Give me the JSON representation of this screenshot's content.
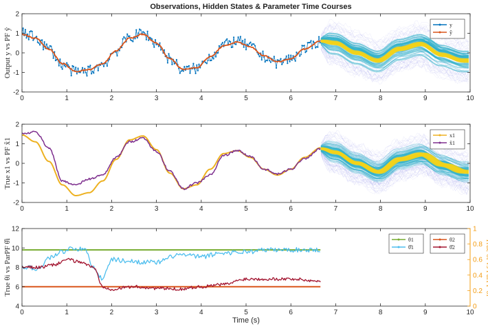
{
  "figure_title": "Observations, Hidden States & Parameter Time Courses",
  "xlabel": "Time (s)",
  "colors": {
    "blue": "#0072bd",
    "orange": "#d95319",
    "gold": "#edb120",
    "purple": "#7e2f8e",
    "green": "#77ac30",
    "cyan": "#4dbeee",
    "darkred": "#a2142f",
    "right_axis": "#f39c12",
    "band_outer": "#3a3ad8",
    "band_mid": "#2fb0c8",
    "band_inner": "#f2d21a"
  },
  "chart_data": [
    {
      "type": "line",
      "ylabel": "Output y vs PF ŷ",
      "xlim": [
        0,
        10
      ],
      "ylim": [
        -2,
        2
      ],
      "xticks": [
        0,
        1,
        2,
        3,
        4,
        5,
        6,
        7,
        8,
        9,
        10
      ],
      "yticks": [
        -2,
        -1,
        0,
        1,
        2
      ],
      "legend": [
        "y",
        "ŷ"
      ],
      "legend_position": "top-right",
      "observed_until": 6.67,
      "series": [
        {
          "name": "y",
          "x": [
            0,
            0.3,
            0.6,
            0.9,
            1.2,
            1.5,
            1.8,
            2.1,
            2.4,
            2.7,
            3.0,
            3.3,
            3.6,
            3.9,
            4.2,
            4.5,
            4.8,
            5.1,
            5.4,
            5.7,
            6.0,
            6.3,
            6.67
          ],
          "y": [
            1.0,
            0.8,
            0.2,
            -0.6,
            -1.0,
            -0.9,
            -0.6,
            0.1,
            0.8,
            1.0,
            0.5,
            -0.3,
            -0.9,
            -0.8,
            -0.2,
            0.4,
            0.6,
            0.3,
            -0.2,
            -0.5,
            -0.3,
            0.2,
            0.6
          ]
        },
        {
          "name": "ŷ",
          "x": [
            0,
            0.3,
            0.6,
            0.9,
            1.2,
            1.5,
            1.8,
            2.1,
            2.4,
            2.7,
            3.0,
            3.3,
            3.6,
            3.9,
            4.2,
            4.5,
            4.8,
            5.1,
            5.4,
            5.7,
            6.0,
            6.3,
            6.67
          ],
          "y": [
            0.95,
            0.75,
            0.2,
            -0.55,
            -0.95,
            -0.85,
            -0.55,
            0.1,
            0.75,
            0.95,
            0.5,
            -0.3,
            -0.85,
            -0.75,
            -0.2,
            0.35,
            0.55,
            0.3,
            -0.15,
            -0.45,
            -0.3,
            0.2,
            0.6
          ]
        }
      ],
      "forecast": {
        "x": [
          6.67,
          7.0,
          7.5,
          8.0,
          8.5,
          9.0,
          9.5,
          10.0
        ],
        "mean": [
          0.6,
          0.5,
          0.0,
          -0.4,
          0.2,
          0.45,
          -0.1,
          -0.4
        ],
        "spread": 1.1
      }
    },
    {
      "type": "line",
      "ylabel": "True x1 vs PF x̂1",
      "xlim": [
        0,
        10
      ],
      "ylim": [
        -2,
        2
      ],
      "xticks": [
        0,
        1,
        2,
        3,
        4,
        5,
        6,
        7,
        8,
        9,
        10
      ],
      "yticks": [
        -2,
        -1,
        0,
        1,
        2
      ],
      "legend": [
        "x1",
        "x̂1"
      ],
      "legend_position": "top-right",
      "observed_until": 6.67,
      "series": [
        {
          "name": "x1",
          "x": [
            0,
            0.3,
            0.6,
            0.9,
            1.2,
            1.5,
            1.8,
            2.1,
            2.4,
            2.7,
            3.0,
            3.3,
            3.6,
            3.9,
            4.2,
            4.5,
            4.8,
            5.1,
            5.4,
            5.7,
            6.0,
            6.3,
            6.67
          ],
          "y": [
            1.45,
            1.1,
            0.1,
            -1.1,
            -1.65,
            -1.5,
            -0.9,
            0.2,
            1.2,
            1.4,
            0.7,
            -0.5,
            -1.3,
            -1.1,
            -0.3,
            0.5,
            0.65,
            0.3,
            -0.3,
            -0.6,
            -0.3,
            0.3,
            0.8
          ]
        },
        {
          "name": "x̂1",
          "x": [
            0,
            0.3,
            0.6,
            0.9,
            1.2,
            1.5,
            1.8,
            2.1,
            2.4,
            2.7,
            3.0,
            3.3,
            3.6,
            3.9,
            4.2,
            4.5,
            4.8,
            5.1,
            5.4,
            5.7,
            6.0,
            6.3,
            6.67
          ],
          "y": [
            1.5,
            1.6,
            0.8,
            -0.9,
            -1.1,
            -0.8,
            -0.6,
            0.3,
            1.1,
            1.3,
            0.6,
            -0.4,
            -1.3,
            -1.0,
            -0.6,
            0.4,
            0.65,
            0.35,
            -0.3,
            -0.55,
            -0.3,
            0.25,
            0.75
          ]
        }
      ],
      "forecast": {
        "x": [
          6.67,
          7.0,
          7.5,
          8.0,
          8.5,
          9.0,
          9.5,
          10.0
        ],
        "mean": [
          0.75,
          0.55,
          0.0,
          -0.45,
          0.2,
          0.45,
          -0.1,
          -0.45
        ],
        "spread": 1.0
      }
    },
    {
      "type": "line",
      "ylabel": "True θi vs ParPF θ̂i",
      "ylabel_right": "True θi vs ParPF θ̂i",
      "xlim": [
        0,
        10
      ],
      "ylim": [
        4,
        12
      ],
      "ylim_right": [
        0,
        1
      ],
      "xticks": [
        0,
        1,
        2,
        3,
        4,
        5,
        6,
        7,
        8,
        9,
        10
      ],
      "yticks": [
        4,
        6,
        8,
        10,
        12
      ],
      "yticks_right": [
        0,
        0.2,
        0.4,
        0.6,
        0.8,
        1
      ],
      "legend": [
        "θ1",
        "θ̂1",
        "θ2",
        "θ̂2"
      ],
      "legend_position": "top-right",
      "series": [
        {
          "name": "θ1",
          "axis": "left",
          "x": [
            0,
            6.67
          ],
          "y": [
            9.8,
            9.8
          ]
        },
        {
          "name": "θ̂1",
          "axis": "left",
          "x": [
            0,
            0.4,
            0.6,
            0.9,
            1.1,
            1.4,
            1.6,
            1.8,
            2.0,
            2.5,
            3.0,
            3.5,
            4.0,
            4.5,
            5.0,
            5.5,
            6.0,
            6.67
          ],
          "y": [
            8.0,
            7.9,
            9.0,
            9.6,
            10.0,
            9.8,
            8.0,
            6.8,
            8.8,
            8.6,
            8.5,
            9.3,
            9.1,
            9.5,
            9.6,
            9.8,
            9.8,
            9.8
          ]
        },
        {
          "name": "θ2",
          "axis": "right",
          "x": [
            0,
            6.67
          ],
          "y": [
            0.25,
            0.25
          ]
        },
        {
          "name": "θ̂2",
          "axis": "right",
          "x": [
            0,
            0.4,
            0.7,
            1.0,
            1.3,
            1.6,
            1.8,
            2.0,
            2.5,
            3.0,
            3.5,
            4.0,
            4.5,
            5.0,
            5.5,
            6.0,
            6.67
          ],
          "y": [
            0.5,
            0.5,
            0.53,
            0.6,
            0.57,
            0.5,
            0.25,
            0.22,
            0.25,
            0.23,
            0.22,
            0.25,
            0.28,
            0.35,
            0.35,
            0.35,
            0.32
          ]
        }
      ]
    }
  ]
}
